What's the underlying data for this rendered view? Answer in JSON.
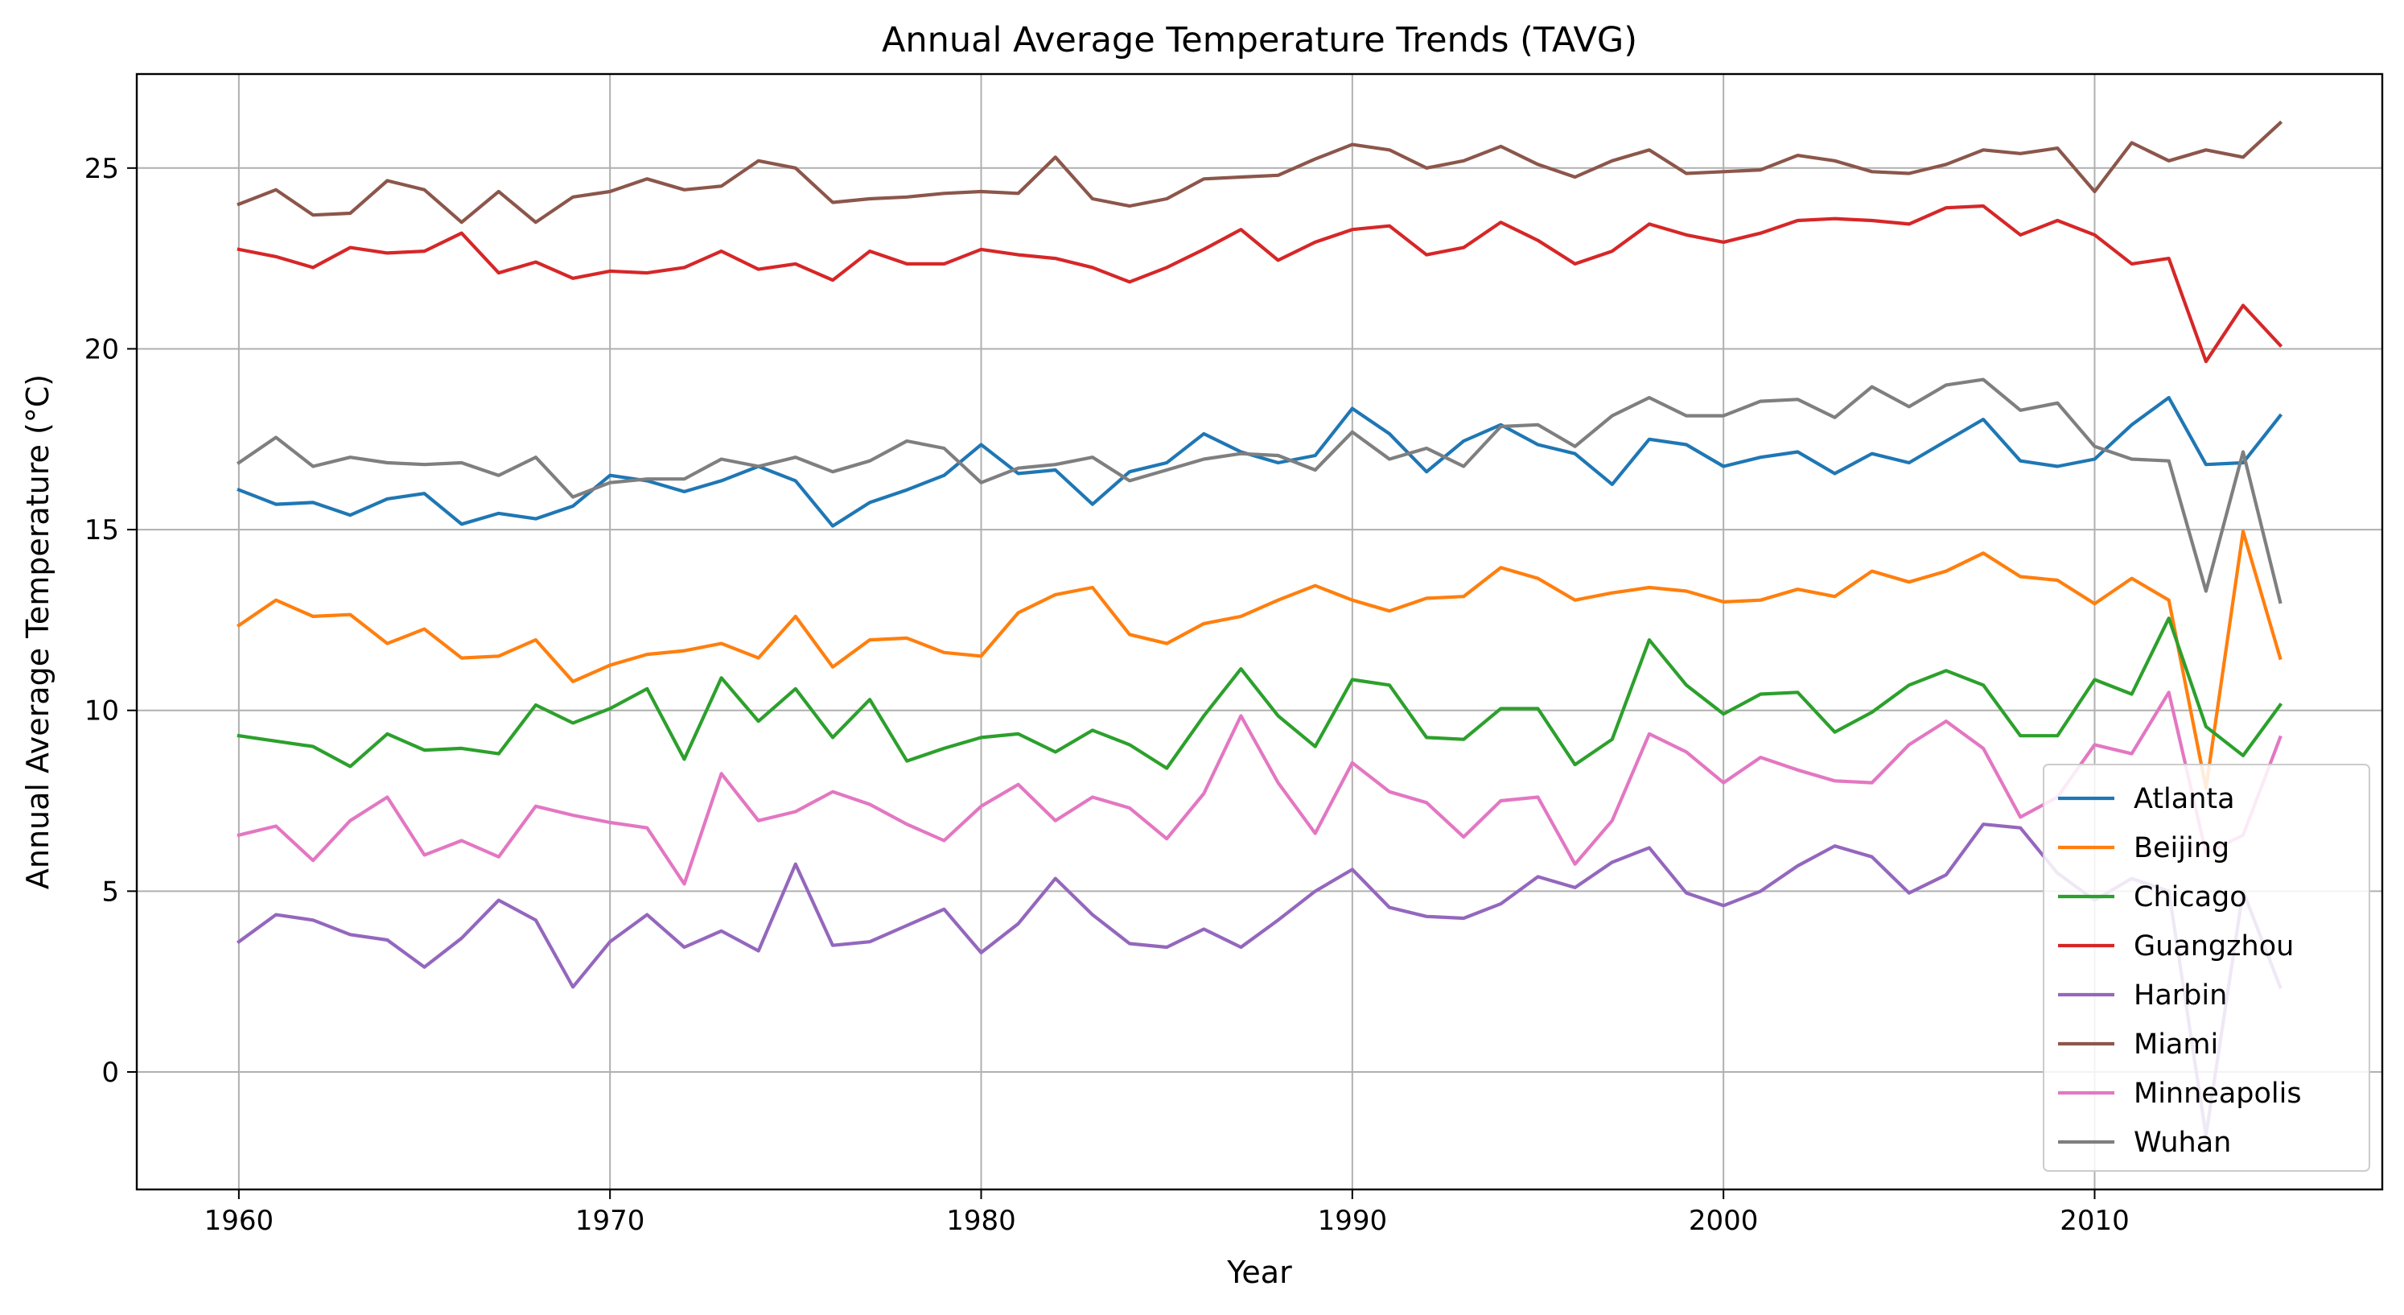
{
  "chart_data": {
    "type": "line",
    "title": "Annual Average Temperature Trends (TAVG)",
    "xlabel": "Year",
    "ylabel": "Annual Average Temperature (°C)",
    "xlim": [
      1957.25,
      2017.75
    ],
    "ylim": [
      -3.25,
      27.6
    ],
    "xticks": [
      1960,
      1970,
      1980,
      1990,
      2000,
      2010
    ],
    "yticks": [
      0,
      5,
      10,
      15,
      20,
      25
    ],
    "grid": true,
    "legend_position": "lower-right",
    "x": [
      1960,
      1961,
      1962,
      1963,
      1964,
      1965,
      1966,
      1967,
      1968,
      1969,
      1970,
      1971,
      1972,
      1973,
      1974,
      1975,
      1976,
      1977,
      1978,
      1979,
      1980,
      1981,
      1982,
      1983,
      1984,
      1985,
      1986,
      1987,
      1988,
      1989,
      1990,
      1991,
      1992,
      1993,
      1994,
      1995,
      1996,
      1997,
      1998,
      1999,
      2000,
      2001,
      2002,
      2003,
      2004,
      2005,
      2006,
      2007,
      2008,
      2009,
      2010,
      2011,
      2012,
      2013,
      2014,
      2015
    ],
    "series": [
      {
        "name": "Atlanta",
        "color": "#1f77b4",
        "values": [
          16.1,
          15.7,
          15.75,
          15.4,
          15.85,
          16.0,
          15.15,
          15.45,
          15.3,
          15.65,
          16.5,
          16.35,
          16.05,
          16.35,
          16.75,
          16.35,
          15.1,
          15.75,
          16.1,
          16.5,
          17.35,
          16.55,
          16.65,
          15.7,
          16.6,
          16.85,
          17.65,
          17.15,
          16.85,
          17.05,
          18.35,
          17.65,
          16.6,
          17.45,
          17.9,
          17.35,
          17.1,
          16.25,
          17.5,
          17.35,
          16.75,
          17.0,
          17.15,
          16.55,
          17.1,
          16.85,
          17.45,
          18.05,
          16.9,
          16.75,
          16.95,
          17.9,
          18.65,
          16.8,
          16.85,
          18.15
        ]
      },
      {
        "name": "Beijing",
        "color": "#ff7f0e",
        "values": [
          12.35,
          13.05,
          12.6,
          12.65,
          11.85,
          12.25,
          11.45,
          11.5,
          11.95,
          10.8,
          11.25,
          11.55,
          11.65,
          11.85,
          11.45,
          12.6,
          11.2,
          11.95,
          12.0,
          11.6,
          11.5,
          12.7,
          13.2,
          13.4,
          12.1,
          11.85,
          12.4,
          12.6,
          13.05,
          13.45,
          13.05,
          12.75,
          13.1,
          13.15,
          13.95,
          13.65,
          13.05,
          13.25,
          13.4,
          13.3,
          13.0,
          13.05,
          13.35,
          13.15,
          13.85,
          13.55,
          13.85,
          14.35,
          13.7,
          13.6,
          12.95,
          13.65,
          13.05,
          7.85,
          14.95,
          11.45
        ]
      },
      {
        "name": "Chicago",
        "color": "#2ca02c",
        "values": [
          9.3,
          9.15,
          9.0,
          8.45,
          9.35,
          8.9,
          8.95,
          8.8,
          10.15,
          9.65,
          10.05,
          10.6,
          8.65,
          10.9,
          9.7,
          10.6,
          9.25,
          10.3,
          8.6,
          8.95,
          9.25,
          9.35,
          8.85,
          9.45,
          9.05,
          8.4,
          9.85,
          11.15,
          9.85,
          9.0,
          10.85,
          10.7,
          9.25,
          9.2,
          10.05,
          10.05,
          8.5,
          9.2,
          11.95,
          10.7,
          9.9,
          10.45,
          10.5,
          9.4,
          9.95,
          10.7,
          11.1,
          10.7,
          9.3,
          9.3,
          10.85,
          10.45,
          12.55,
          9.55,
          8.75,
          10.15
        ]
      },
      {
        "name": "Guangzhou",
        "color": "#d62728",
        "values": [
          22.75,
          22.55,
          22.25,
          22.8,
          22.65,
          22.7,
          23.2,
          22.1,
          22.4,
          21.95,
          22.15,
          22.1,
          22.25,
          22.7,
          22.2,
          22.35,
          21.9,
          22.7,
          22.35,
          22.35,
          22.75,
          22.6,
          22.5,
          22.25,
          21.85,
          22.25,
          22.75,
          23.3,
          22.45,
          22.95,
          23.3,
          23.4,
          22.6,
          22.8,
          23.5,
          23.0,
          22.35,
          22.7,
          23.45,
          23.15,
          22.95,
          23.2,
          23.55,
          23.6,
          23.55,
          23.45,
          23.9,
          23.95,
          23.15,
          23.55,
          23.15,
          22.35,
          22.5,
          19.65,
          21.2,
          20.1
        ]
      },
      {
        "name": "Harbin",
        "color": "#9467bd",
        "values": [
          3.6,
          4.35,
          4.2,
          3.8,
          3.65,
          2.9,
          3.7,
          4.75,
          4.2,
          2.35,
          3.6,
          4.35,
          3.45,
          3.9,
          3.35,
          5.75,
          3.5,
          3.6,
          4.05,
          4.5,
          3.3,
          4.1,
          5.35,
          4.35,
          3.55,
          3.45,
          3.95,
          3.45,
          4.2,
          5.0,
          5.6,
          4.55,
          4.3,
          4.25,
          4.65,
          5.4,
          5.1,
          5.8,
          6.2,
          4.95,
          4.6,
          5.0,
          5.7,
          6.25,
          5.95,
          4.95,
          5.45,
          6.85,
          6.75,
          5.5,
          4.75,
          5.35,
          5.0,
          -1.75,
          5.0,
          2.35
        ]
      },
      {
        "name": "Miami",
        "color": "#8c564b",
        "values": [
          24.0,
          24.4,
          23.7,
          23.75,
          24.65,
          24.4,
          23.5,
          24.35,
          23.5,
          24.2,
          24.35,
          24.7,
          24.4,
          24.5,
          25.2,
          25.0,
          24.05,
          24.15,
          24.2,
          24.3,
          24.35,
          24.3,
          25.3,
          24.15,
          23.95,
          24.15,
          24.7,
          24.75,
          24.8,
          25.25,
          25.65,
          25.5,
          25.0,
          25.2,
          25.6,
          25.1,
          24.75,
          25.2,
          25.5,
          24.85,
          24.9,
          24.95,
          25.35,
          25.2,
          24.9,
          24.85,
          25.1,
          25.5,
          25.4,
          25.55,
          24.35,
          25.7,
          25.2,
          25.5,
          25.3,
          26.25
        ]
      },
      {
        "name": "Minneapolis",
        "color": "#e377c2",
        "values": [
          6.55,
          6.8,
          5.85,
          6.95,
          7.6,
          6.0,
          6.4,
          5.95,
          7.35,
          7.1,
          6.9,
          6.75,
          5.2,
          8.25,
          6.95,
          7.2,
          7.75,
          7.4,
          6.85,
          6.4,
          7.35,
          7.95,
          6.95,
          7.6,
          7.3,
          6.45,
          7.7,
          9.85,
          8.0,
          6.6,
          8.55,
          7.75,
          7.45,
          6.5,
          7.5,
          7.6,
          5.75,
          6.95,
          9.35,
          8.85,
          8.0,
          8.7,
          8.35,
          8.05,
          8.0,
          9.05,
          9.7,
          8.95,
          7.05,
          7.6,
          9.05,
          8.8,
          10.5,
          6.05,
          6.55,
          9.25
        ]
      },
      {
        "name": "Wuhan",
        "color": "#7f7f7f",
        "values": [
          16.85,
          17.55,
          16.75,
          17.0,
          16.85,
          16.8,
          16.85,
          16.5,
          17.0,
          15.9,
          16.3,
          16.4,
          16.4,
          16.95,
          16.75,
          17.0,
          16.6,
          16.9,
          17.45,
          17.25,
          16.3,
          16.7,
          16.8,
          17.0,
          16.35,
          16.65,
          16.95,
          17.1,
          17.05,
          16.65,
          17.7,
          16.95,
          17.25,
          16.75,
          17.85,
          17.9,
          17.3,
          18.15,
          18.65,
          18.15,
          18.15,
          18.55,
          18.6,
          18.1,
          18.95,
          18.4,
          19.0,
          19.15,
          18.3,
          18.5,
          17.3,
          16.95,
          16.9,
          13.3,
          17.15,
          13.0
        ]
      }
    ]
  }
}
